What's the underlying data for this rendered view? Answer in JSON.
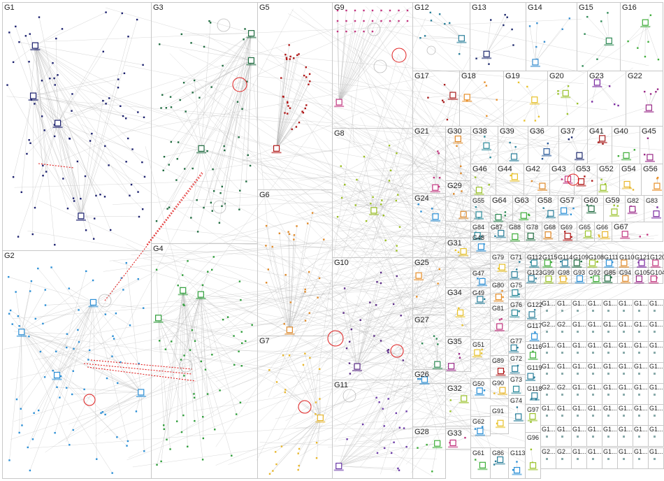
{
  "groups": [
    {
      "id": "G1",
      "color": "#1a1f6e"
    },
    {
      "id": "G2",
      "color": "#2b8fd6"
    },
    {
      "id": "G3",
      "color": "#1e6b3f"
    },
    {
      "id": "G4",
      "color": "#2e9e3a"
    },
    {
      "id": "G5",
      "color": "#b01818"
    },
    {
      "id": "G6",
      "color": "#e08a2a"
    },
    {
      "id": "G7",
      "color": "#e8b62a"
    },
    {
      "id": "G8",
      "color": "#9bbf23"
    },
    {
      "id": "G9",
      "color": "#c2357f"
    },
    {
      "id": "G10",
      "color": "#5a2a86"
    },
    {
      "id": "G11",
      "color": "#6b3aa8"
    },
    {
      "id": "G12",
      "color": "#2a7f9a"
    },
    {
      "id": "G13",
      "color": "#1e2a6e"
    },
    {
      "id": "G14",
      "color": "#3a8fd0"
    },
    {
      "id": "G15",
      "color": "#2e8a55"
    },
    {
      "id": "G16",
      "color": "#3fae3a"
    },
    {
      "id": "G17",
      "color": "#a81e1e"
    },
    {
      "id": "G18",
      "color": "#e8902a"
    },
    {
      "id": "G19",
      "color": "#e8c22a"
    },
    {
      "id": "G20",
      "color": "#9ac22a"
    },
    {
      "id": "G23",
      "color": "#7a2aa0"
    },
    {
      "id": "G22",
      "color": "#9a2a88"
    },
    {
      "id": "G21",
      "color": "#c2357f"
    },
    {
      "id": "G30",
      "color": "#e08a2a"
    },
    {
      "id": "G38",
      "color": "#2a8a9a"
    },
    {
      "id": "G39",
      "color": "#2a7f9a"
    },
    {
      "id": "G36",
      "color": "#2a5a9a"
    },
    {
      "id": "G37",
      "color": "#1e2a6e"
    },
    {
      "id": "G41",
      "color": "#a81e1e"
    },
    {
      "id": "G40",
      "color": "#3fae3a"
    },
    {
      "id": "G45",
      "color": "#9a2a88"
    },
    {
      "id": "G24",
      "color": "#2a8fd6"
    },
    {
      "id": "G29",
      "color": "#e08a2a"
    },
    {
      "id": "G46",
      "color": "#9ac22a"
    },
    {
      "id": "G44",
      "color": "#e8c22a"
    },
    {
      "id": "G42",
      "color": "#e08a2a"
    },
    {
      "id": "G43",
      "color": "#c2357f"
    },
    {
      "id": "G53",
      "color": "#b01818"
    },
    {
      "id": "G52",
      "color": "#9ac22a"
    },
    {
      "id": "G54",
      "color": "#e8b62a"
    },
    {
      "id": "G56",
      "color": "#e8902a"
    },
    {
      "id": "G55",
      "color": "#2a8a9a"
    },
    {
      "id": "G64",
      "color": "#2e8a55"
    },
    {
      "id": "G63",
      "color": "#3fae3a"
    },
    {
      "id": "G58",
      "color": "#2a7f9a"
    },
    {
      "id": "G57",
      "color": "#2a8fd6"
    },
    {
      "id": "G60",
      "color": "#1e6b3f"
    },
    {
      "id": "G59",
      "color": "#9ac22a"
    },
    {
      "id": "G82",
      "color": "#9a2a88"
    },
    {
      "id": "G83",
      "color": "#7a2aa0"
    },
    {
      "id": "G31",
      "color": "#e8c22a"
    },
    {
      "id": "G84",
      "color": "#2a8a9a"
    },
    {
      "id": "G87",
      "color": "#2a7f9a"
    },
    {
      "id": "G88",
      "color": "#3fae3a"
    },
    {
      "id": "G78",
      "color": "#1e6b3f"
    },
    {
      "id": "G68",
      "color": "#e08a2a"
    },
    {
      "id": "G69",
      "color": "#b01818"
    },
    {
      "id": "G65",
      "color": "#9ac22a"
    },
    {
      "id": "G66",
      "color": "#e8b62a"
    },
    {
      "id": "G67",
      "color": "#c2357f"
    },
    {
      "id": "G48",
      "color": "#2a8fd6"
    },
    {
      "id": "G25",
      "color": "#e8902a"
    },
    {
      "id": "G47",
      "color": "#2a8fd6"
    },
    {
      "id": "G79",
      "color": "#e8c22a"
    },
    {
      "id": "G71",
      "color": "#2a7f9a"
    },
    {
      "id": "G112",
      "color": "#2a8a9a"
    },
    {
      "id": "G115",
      "color": "#3fae3a"
    },
    {
      "id": "G114",
      "color": "#2a7f9a"
    },
    {
      "id": "G109",
      "color": "#1e6b3f"
    },
    {
      "id": "G108",
      "color": "#9ac22a"
    },
    {
      "id": "G111",
      "color": "#2a8fd6"
    },
    {
      "id": "G110",
      "color": "#e08a2a"
    },
    {
      "id": "G121",
      "color": "#7a2aa0"
    },
    {
      "id": "G120",
      "color": "#c2357f"
    },
    {
      "id": "G80",
      "color": "#e8902a"
    },
    {
      "id": "G75",
      "color": "#2a8a9a"
    },
    {
      "id": "G123",
      "color": "#2a7f9a"
    },
    {
      "id": "G99",
      "color": "#9ac22a"
    },
    {
      "id": "G98",
      "color": "#e8b62a"
    },
    {
      "id": "G93",
      "color": "#2a8fd6"
    },
    {
      "id": "G92",
      "color": "#3fae3a"
    },
    {
      "id": "G85",
      "color": "#1e6b3f"
    },
    {
      "id": "G94",
      "color": "#e08a2a"
    },
    {
      "id": "G105",
      "color": "#9a2a88"
    },
    {
      "id": "G104",
      "color": "#c2357f"
    },
    {
      "id": "G34",
      "color": "#e8c22a"
    },
    {
      "id": "G49",
      "color": "#2a7f9a"
    },
    {
      "id": "G81",
      "color": "#c2357f"
    },
    {
      "id": "G76",
      "color": "#2a8a9a"
    },
    {
      "id": "G122",
      "color": "#2a7f9a"
    },
    {
      "id": "G27",
      "color": "#2e8a55"
    },
    {
      "id": "G117",
      "color": "#2a8fd6"
    },
    {
      "id": "G35",
      "color": "#9a2a88"
    },
    {
      "id": "G51",
      "color": "#e8c22a"
    },
    {
      "id": "G77",
      "color": "#2a7f9a"
    },
    {
      "id": "G116",
      "color": "#3fae3a"
    },
    {
      "id": "G89",
      "color": "#b01818"
    },
    {
      "id": "G26",
      "color": "#2a8fd6"
    },
    {
      "id": "G72",
      "color": "#2a7f9a"
    },
    {
      "id": "G32",
      "color": "#9ac22a"
    },
    {
      "id": "G50",
      "color": "#2a8fd6"
    },
    {
      "id": "G90",
      "color": "#e8b62a"
    },
    {
      "id": "G119",
      "color": "#2a7f9a"
    },
    {
      "id": "G73",
      "color": "#2a8a9a"
    },
    {
      "id": "G118",
      "color": "#2a7f9a"
    },
    {
      "id": "G62",
      "color": "#2a8fd6"
    },
    {
      "id": "G91",
      "color": "#e8c22a"
    },
    {
      "id": "G28",
      "color": "#3fae3a"
    },
    {
      "id": "G33",
      "color": "#c2357f"
    },
    {
      "id": "G74",
      "color": "#2a7f9a"
    },
    {
      "id": "G97",
      "color": "#9ac22a"
    },
    {
      "id": "G61",
      "color": "#3fae3a"
    },
    {
      "id": "G86",
      "color": "#2a7f9a"
    },
    {
      "id": "G113",
      "color": "#2a8fd6"
    },
    {
      "id": "G96",
      "color": "#9ac22a"
    }
  ],
  "truncated_label": "G1...",
  "mini_labels": [
    "G1...",
    "G1...",
    "G1...",
    "G1...",
    "G1...",
    "G1...",
    "G1...",
    "G1...",
    "G2...",
    "G2...",
    "G1...",
    "G1...",
    "G1...",
    "G1...",
    "G1...",
    "G1...",
    "G1...",
    "G1...",
    "G1...",
    "G1...",
    "G1...",
    "G1...",
    "G1...",
    "G1..."
  ],
  "colors": {
    "edge": "#9a9a9a",
    "highlight_edge": "#e02020",
    "box_border": "#c8c8c8",
    "background": "#ffffff"
  }
}
